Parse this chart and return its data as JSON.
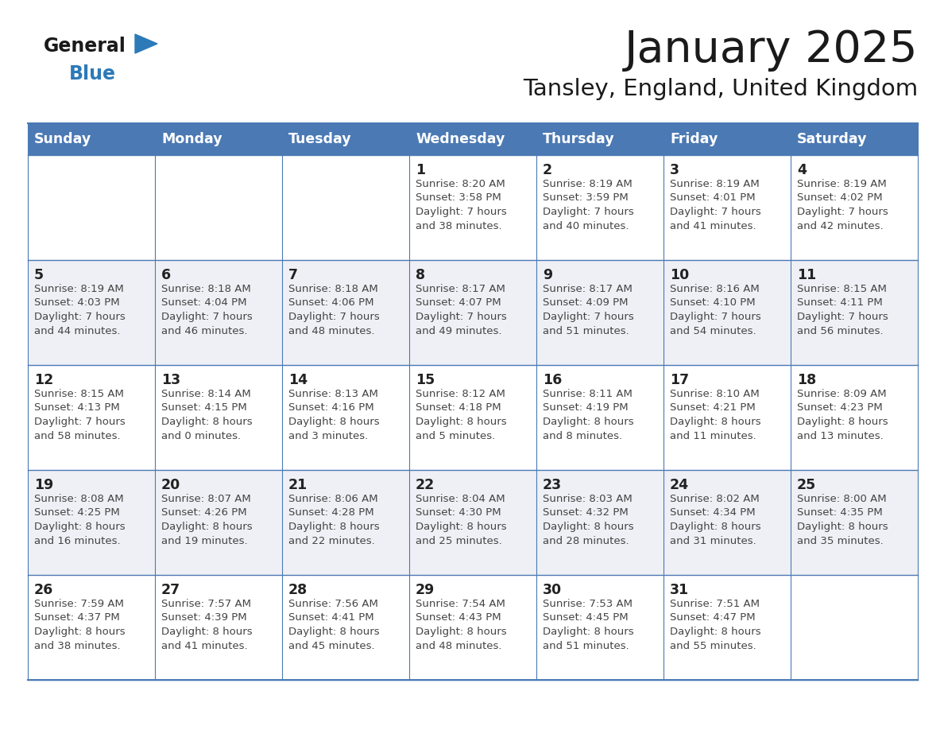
{
  "title": "January 2025",
  "subtitle": "Tansley, England, United Kingdom",
  "days_of_week": [
    "Sunday",
    "Monday",
    "Tuesday",
    "Wednesday",
    "Thursday",
    "Friday",
    "Saturday"
  ],
  "header_bg": "#4b79b4",
  "header_text_color": "#FFFFFF",
  "cell_bg_even": "#FFFFFF",
  "cell_bg_odd": "#EEF0F5",
  "cell_border_color": "#4b79b4",
  "day_number_color": "#222222",
  "cell_text_color": "#444444",
  "title_color": "#1a1a1a",
  "subtitle_color": "#1a1a1a",
  "logo_general_color": "#1a1a1a",
  "logo_blue_color": "#2d7ab8",
  "logo_triangle_color": "#2d7ab8",
  "calendar_data": [
    [
      {
        "day": "",
        "info": ""
      },
      {
        "day": "",
        "info": ""
      },
      {
        "day": "",
        "info": ""
      },
      {
        "day": "1",
        "info": "Sunrise: 8:20 AM\nSunset: 3:58 PM\nDaylight: 7 hours\nand 38 minutes."
      },
      {
        "day": "2",
        "info": "Sunrise: 8:19 AM\nSunset: 3:59 PM\nDaylight: 7 hours\nand 40 minutes."
      },
      {
        "day": "3",
        "info": "Sunrise: 8:19 AM\nSunset: 4:01 PM\nDaylight: 7 hours\nand 41 minutes."
      },
      {
        "day": "4",
        "info": "Sunrise: 8:19 AM\nSunset: 4:02 PM\nDaylight: 7 hours\nand 42 minutes."
      }
    ],
    [
      {
        "day": "5",
        "info": "Sunrise: 8:19 AM\nSunset: 4:03 PM\nDaylight: 7 hours\nand 44 minutes."
      },
      {
        "day": "6",
        "info": "Sunrise: 8:18 AM\nSunset: 4:04 PM\nDaylight: 7 hours\nand 46 minutes."
      },
      {
        "day": "7",
        "info": "Sunrise: 8:18 AM\nSunset: 4:06 PM\nDaylight: 7 hours\nand 48 minutes."
      },
      {
        "day": "8",
        "info": "Sunrise: 8:17 AM\nSunset: 4:07 PM\nDaylight: 7 hours\nand 49 minutes."
      },
      {
        "day": "9",
        "info": "Sunrise: 8:17 AM\nSunset: 4:09 PM\nDaylight: 7 hours\nand 51 minutes."
      },
      {
        "day": "10",
        "info": "Sunrise: 8:16 AM\nSunset: 4:10 PM\nDaylight: 7 hours\nand 54 minutes."
      },
      {
        "day": "11",
        "info": "Sunrise: 8:15 AM\nSunset: 4:11 PM\nDaylight: 7 hours\nand 56 minutes."
      }
    ],
    [
      {
        "day": "12",
        "info": "Sunrise: 8:15 AM\nSunset: 4:13 PM\nDaylight: 7 hours\nand 58 minutes."
      },
      {
        "day": "13",
        "info": "Sunrise: 8:14 AM\nSunset: 4:15 PM\nDaylight: 8 hours\nand 0 minutes."
      },
      {
        "day": "14",
        "info": "Sunrise: 8:13 AM\nSunset: 4:16 PM\nDaylight: 8 hours\nand 3 minutes."
      },
      {
        "day": "15",
        "info": "Sunrise: 8:12 AM\nSunset: 4:18 PM\nDaylight: 8 hours\nand 5 minutes."
      },
      {
        "day": "16",
        "info": "Sunrise: 8:11 AM\nSunset: 4:19 PM\nDaylight: 8 hours\nand 8 minutes."
      },
      {
        "day": "17",
        "info": "Sunrise: 8:10 AM\nSunset: 4:21 PM\nDaylight: 8 hours\nand 11 minutes."
      },
      {
        "day": "18",
        "info": "Sunrise: 8:09 AM\nSunset: 4:23 PM\nDaylight: 8 hours\nand 13 minutes."
      }
    ],
    [
      {
        "day": "19",
        "info": "Sunrise: 8:08 AM\nSunset: 4:25 PM\nDaylight: 8 hours\nand 16 minutes."
      },
      {
        "day": "20",
        "info": "Sunrise: 8:07 AM\nSunset: 4:26 PM\nDaylight: 8 hours\nand 19 minutes."
      },
      {
        "day": "21",
        "info": "Sunrise: 8:06 AM\nSunset: 4:28 PM\nDaylight: 8 hours\nand 22 minutes."
      },
      {
        "day": "22",
        "info": "Sunrise: 8:04 AM\nSunset: 4:30 PM\nDaylight: 8 hours\nand 25 minutes."
      },
      {
        "day": "23",
        "info": "Sunrise: 8:03 AM\nSunset: 4:32 PM\nDaylight: 8 hours\nand 28 minutes."
      },
      {
        "day": "24",
        "info": "Sunrise: 8:02 AM\nSunset: 4:34 PM\nDaylight: 8 hours\nand 31 minutes."
      },
      {
        "day": "25",
        "info": "Sunrise: 8:00 AM\nSunset: 4:35 PM\nDaylight: 8 hours\nand 35 minutes."
      }
    ],
    [
      {
        "day": "26",
        "info": "Sunrise: 7:59 AM\nSunset: 4:37 PM\nDaylight: 8 hours\nand 38 minutes."
      },
      {
        "day": "27",
        "info": "Sunrise: 7:57 AM\nSunset: 4:39 PM\nDaylight: 8 hours\nand 41 minutes."
      },
      {
        "day": "28",
        "info": "Sunrise: 7:56 AM\nSunset: 4:41 PM\nDaylight: 8 hours\nand 45 minutes."
      },
      {
        "day": "29",
        "info": "Sunrise: 7:54 AM\nSunset: 4:43 PM\nDaylight: 8 hours\nand 48 minutes."
      },
      {
        "day": "30",
        "info": "Sunrise: 7:53 AM\nSunset: 4:45 PM\nDaylight: 8 hours\nand 51 minutes."
      },
      {
        "day": "31",
        "info": "Sunrise: 7:51 AM\nSunset: 4:47 PM\nDaylight: 8 hours\nand 55 minutes."
      },
      {
        "day": "",
        "info": ""
      }
    ]
  ]
}
